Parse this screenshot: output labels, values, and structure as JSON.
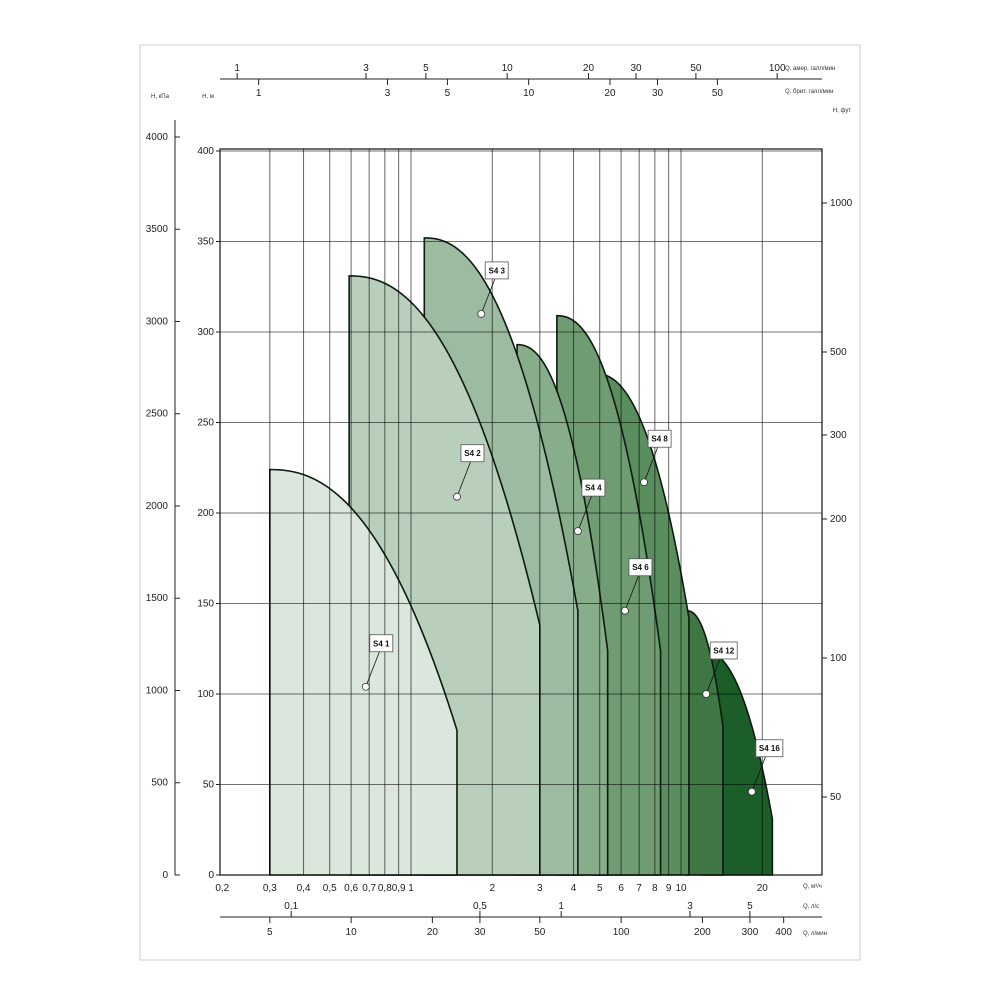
{
  "chart_data": {
    "type": "area",
    "title": "",
    "x_scale": "log",
    "xlim": [
      0.2,
      33
    ],
    "ylim": [
      0,
      400
    ],
    "grid": true,
    "axes": {
      "x_bottom_m3h": {
        "label": "Q, м³/ч",
        "ticks": [
          0.2,
          0.3,
          0.4,
          0.5,
          0.6,
          0.7,
          0.8,
          0.9,
          1,
          2,
          3,
          4,
          5,
          6,
          7,
          8,
          9,
          10,
          20
        ],
        "tick_labels": [
          "0,2",
          "0,3",
          "0,4",
          "0,5",
          "0,6",
          "0,7",
          "0,8",
          "0,9",
          "1",
          "2",
          "3",
          "4",
          "5",
          "6",
          "7",
          "8",
          "9",
          "10",
          "20"
        ]
      },
      "x_bottom_ls": {
        "label": "Q, л/с",
        "ticks": [
          0.1,
          0.5,
          1,
          3,
          5
        ],
        "tick_labels": [
          "0,1",
          "0,5",
          "1",
          "3",
          "5"
        ]
      },
      "x_bottom_lmin": {
        "label": "Q, л/мин",
        "ticks": [
          5,
          10,
          20,
          30,
          50,
          100,
          200,
          300,
          400
        ],
        "tick_labels": [
          "5",
          "10",
          "20",
          "30",
          "50",
          "100",
          "200",
          "300",
          "400"
        ]
      },
      "x_top_usgpm": {
        "label": "Q, амер. галл/мин",
        "ticks": [
          1,
          3,
          5,
          10,
          20,
          30,
          50,
          100
        ],
        "tick_labels": [
          "1",
          "3",
          "5",
          "10",
          "20",
          "30",
          "50",
          "100"
        ]
      },
      "x_top_ukgpm": {
        "label": "Q, брит. галл/мин",
        "ticks": [
          1,
          3,
          5,
          10,
          20,
          30,
          50
        ],
        "tick_labels": [
          "1",
          "3",
          "5",
          "10",
          "20",
          "30",
          "50"
        ]
      },
      "y_left_m": {
        "label": "H, м",
        "ticks": [
          0,
          50,
          100,
          150,
          200,
          250,
          300,
          350,
          400
        ]
      },
      "y_left_kpa": {
        "label": "H, кПа",
        "ticks": [
          0,
          500,
          1000,
          1500,
          2000,
          2500,
          3000,
          3500,
          4000
        ]
      },
      "y_right_ft": {
        "label": "H, фут",
        "ticks": [
          50,
          100,
          200,
          300,
          500,
          1000
        ]
      }
    },
    "series": [
      {
        "name": "S4 1",
        "color": "#dbe6dc",
        "q_start": 0.3,
        "h_start": 224,
        "q_end": 1.48,
        "h_end": 80,
        "marker": [
          0.68,
          104
        ]
      },
      {
        "name": "S4 2",
        "color": "#b9cfbb",
        "q_start": 0.59,
        "h_start": 331,
        "q_end": 3.0,
        "h_end": 138,
        "marker": [
          1.48,
          209
        ]
      },
      {
        "name": "S4 3",
        "color": "#9dbba0",
        "q_start": 1.12,
        "h_start": 352,
        "q_end": 4.15,
        "h_end": 146,
        "marker": [
          1.82,
          310
        ]
      },
      {
        "name": "S4 4",
        "color": "#88ad8b",
        "q_start": 2.47,
        "h_start": 293,
        "q_end": 5.35,
        "h_end": 124,
        "marker": [
          4.15,
          190
        ]
      },
      {
        "name": "S4 6",
        "color": "#6f9c73",
        "q_start": 3.47,
        "h_start": 309,
        "q_end": 8.4,
        "h_end": 124,
        "marker": [
          6.2,
          146
        ]
      },
      {
        "name": "S4 8",
        "color": "#5a8e5e",
        "q_start": 4.8,
        "h_start": 277,
        "q_end": 10.7,
        "h_end": 142,
        "marker": [
          7.3,
          217
        ]
      },
      {
        "name": "S4 12",
        "color": "#3f7744",
        "q_start": 10.5,
        "h_start": 146,
        "q_end": 14.3,
        "h_end": 82,
        "marker": [
          12.4,
          100
        ]
      },
      {
        "name": "S4 16",
        "color": "#1c5e2a",
        "q_start": 12.0,
        "h_start": 124,
        "q_end": 21.8,
        "h_end": 31,
        "marker": [
          18.3,
          46
        ]
      }
    ]
  }
}
